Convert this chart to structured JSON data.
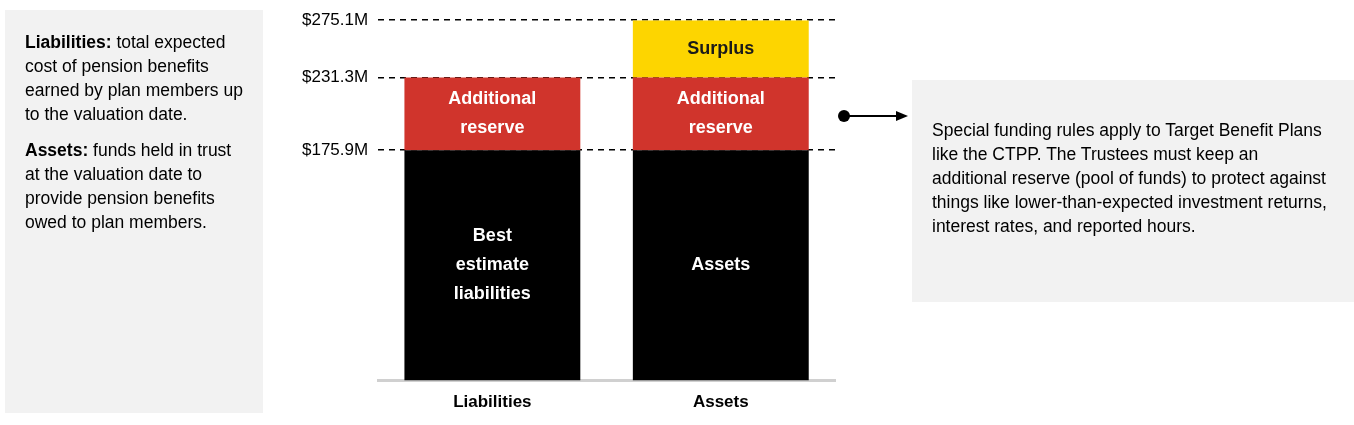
{
  "chart_data": {
    "type": "bar",
    "stacked": true,
    "categories": [
      "Liabilities",
      "Assets"
    ],
    "series": [
      {
        "color": "#000000",
        "values": [
          175.9,
          175.9
        ],
        "value_labels": [
          "Best estimate liabilities",
          "Assets"
        ]
      },
      {
        "color": "#d0342c",
        "values": [
          55.4,
          55.4
        ],
        "value_labels": [
          "Additional reserve",
          "Additional reserve"
        ]
      },
      {
        "color": "#fdd500",
        "values": [
          null,
          43.8
        ],
        "value_labels": [
          null,
          "Surplus"
        ]
      }
    ],
    "ylim": [
      0,
      275.1
    ],
    "yticks": [
      {
        "value": 175.9,
        "label": "$175.9M"
      },
      {
        "value": 231.3,
        "label": "$231.3M"
      },
      {
        "value": 275.1,
        "label": "$275.1M"
      }
    ],
    "grid": "y",
    "legend": false,
    "annotations": [
      "Liabilities: total expected cost of pension benefits earned by plan members up to the valuation date.",
      "Assets: funds held in trust at the valuation date to provide pension benefits owed to plan members.",
      "Special funding rules apply to Target Benefit Plans like the CTPP. The Trustees must keep an additional reserve (pool of funds) to protect against things like lower-than-expected investment returns, interest rates, and reported hours."
    ]
  }
}
